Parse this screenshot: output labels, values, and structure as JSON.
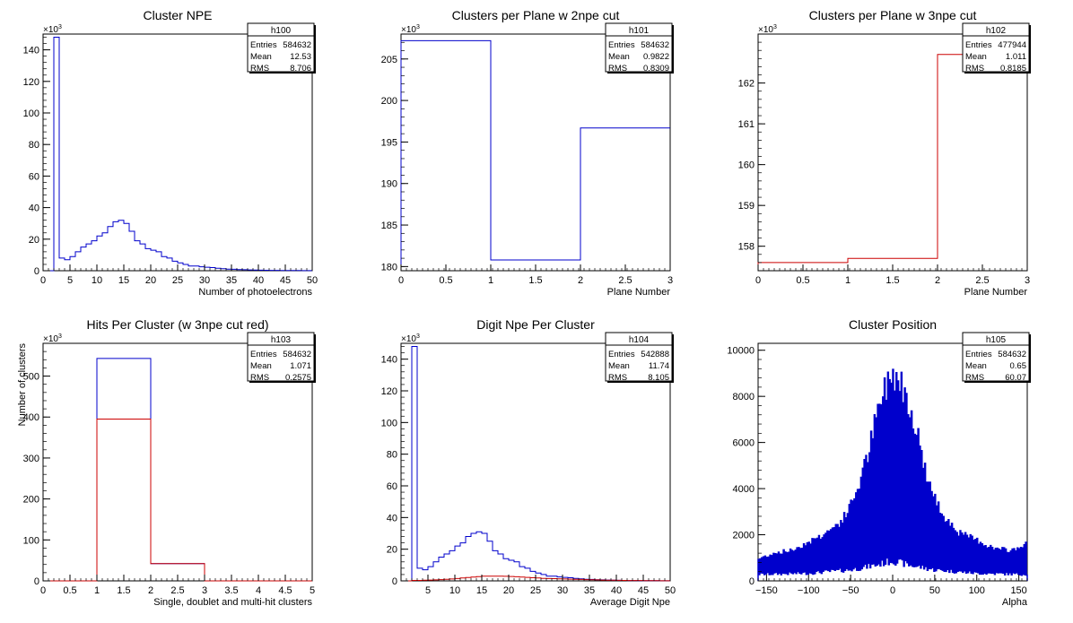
{
  "chart_data": [
    {
      "id": "h100",
      "type": "histogram",
      "title": "Cluster NPE",
      "xlabel": "Number of photoelectrons",
      "ylabel": "",
      "xlim": [
        0,
        50
      ],
      "ylim": [
        0,
        150
      ],
      "y_exponent_label": "×10³",
      "xticks": [
        0,
        5,
        10,
        15,
        20,
        25,
        30,
        35,
        40,
        45,
        50
      ],
      "yticks": [
        0,
        20,
        40,
        60,
        80,
        100,
        120,
        140
      ],
      "stats": {
        "name": "h100",
        "rows": [
          [
            "Entries",
            "584632"
          ],
          [
            "Mean",
            "12.53"
          ],
          [
            "RMS",
            "8.706"
          ]
        ]
      },
      "series": [
        {
          "color": "#0000cc",
          "edges": [
            0,
            1,
            2,
            3,
            4,
            5,
            6,
            7,
            8,
            9,
            10,
            11,
            12,
            13,
            14,
            15,
            16,
            17,
            18,
            19,
            20,
            21,
            22,
            23,
            24,
            25,
            26,
            27,
            28,
            29,
            30,
            31,
            32,
            33,
            34,
            35,
            36,
            37,
            38,
            39,
            40,
            41,
            42,
            43,
            44,
            45,
            46,
            47,
            48,
            49,
            50
          ],
          "values": [
            0,
            0,
            148,
            8,
            7,
            9,
            12,
            15,
            17,
            19,
            22,
            24,
            28,
            31,
            32,
            30,
            25,
            19,
            17,
            14,
            13,
            12,
            9,
            8,
            6,
            5,
            4,
            3,
            3,
            2.5,
            2.2,
            2,
            1.6,
            1.3,
            1,
            0.9,
            0.7,
            0.6,
            0.5,
            0.4,
            0.35,
            0.3,
            0.25,
            0.2,
            0.18,
            0.15,
            0.12,
            0.1,
            0.08,
            0.06
          ]
        }
      ]
    },
    {
      "id": "h101",
      "type": "histogram",
      "title": "Clusters per Plane w 2npe cut",
      "xlabel": "Plane Number",
      "ylabel": "",
      "xlim": [
        0,
        3
      ],
      "ylim": [
        179.5,
        208
      ],
      "y_exponent_label": "×10³",
      "xticks": [
        0,
        0.5,
        1,
        1.5,
        2,
        2.5,
        3
      ],
      "yticks": [
        180,
        185,
        190,
        195,
        200,
        205
      ],
      "stats": {
        "name": "h101",
        "rows": [
          [
            "Entries",
            "584632"
          ],
          [
            "Mean",
            "0.9822"
          ],
          [
            "RMS",
            "0.8309"
          ]
        ]
      },
      "series": [
        {
          "color": "#0000cc",
          "edges": [
            0,
            1,
            2,
            3
          ],
          "values": [
            207.2,
            180.8,
            196.7
          ]
        }
      ]
    },
    {
      "id": "h102",
      "type": "histogram",
      "title": "Clusters per Plane w 3npe cut",
      "xlabel": "Plane Number",
      "ylabel": "",
      "xlim": [
        0,
        3
      ],
      "ylim": [
        157.4,
        163.2
      ],
      "y_exponent_label": "×10³",
      "xticks": [
        0,
        0.5,
        1,
        1.5,
        2,
        2.5,
        3
      ],
      "yticks": [
        158,
        159,
        160,
        161,
        162
      ],
      "stats": {
        "name": "h102",
        "rows": [
          [
            "Entries",
            "477944"
          ],
          [
            "Mean",
            "1.011"
          ],
          [
            "RMS",
            "0.8185"
          ]
        ]
      },
      "series": [
        {
          "color": "#cc0000",
          "edges": [
            0,
            1,
            2,
            3
          ],
          "values": [
            157.6,
            157.7,
            162.7
          ]
        }
      ]
    },
    {
      "id": "h103",
      "type": "histogram",
      "title": "Hits Per Cluster (w 3npe cut red)",
      "xlabel": "Single, doublet and multi-hit clusters",
      "ylabel": "Number of clusters",
      "xlim": [
        0,
        5
      ],
      "ylim": [
        0,
        580
      ],
      "y_exponent_label": "×10³",
      "xticks": [
        0,
        0.5,
        1,
        1.5,
        2,
        2.5,
        3,
        3.5,
        4,
        4.5,
        5
      ],
      "yticks": [
        0,
        100,
        200,
        300,
        400,
        500
      ],
      "stats": {
        "name": "h103",
        "rows": [
          [
            "Entries",
            "584632"
          ],
          [
            "Mean",
            "1.071"
          ],
          [
            "RMS",
            "0.2575"
          ]
        ]
      },
      "series": [
        {
          "color": "#0000cc",
          "edges": [
            0,
            1,
            2,
            3,
            4,
            5
          ],
          "values": [
            0,
            543,
            42,
            0,
            0
          ]
        },
        {
          "color": "#cc0000",
          "edges": [
            0,
            1,
            2,
            3,
            4,
            5
          ],
          "values": [
            0,
            395,
            42,
            0,
            0
          ]
        }
      ]
    },
    {
      "id": "h104",
      "type": "histogram",
      "title": "Digit Npe Per Cluster",
      "xlabel": "Average Digit Npe",
      "ylabel": "",
      "xlim": [
        0,
        50
      ],
      "ylim": [
        0,
        150
      ],
      "y_exponent_label": "×10³",
      "xticks": [
        5,
        10,
        15,
        20,
        25,
        30,
        35,
        40,
        45,
        50
      ],
      "yticks": [
        0,
        20,
        40,
        60,
        80,
        100,
        120,
        140
      ],
      "stats": {
        "name": "h104",
        "rows": [
          [
            "Entries",
            "542888"
          ],
          [
            "Mean",
            "11.74"
          ],
          [
            "RMS",
            "8.105"
          ]
        ]
      },
      "series": [
        {
          "color": "#0000cc",
          "edges": [
            0,
            1,
            2,
            3,
            4,
            5,
            6,
            7,
            8,
            9,
            10,
            11,
            12,
            13,
            14,
            15,
            16,
            17,
            18,
            19,
            20,
            21,
            22,
            23,
            24,
            25,
            26,
            27,
            28,
            29,
            30,
            31,
            32,
            33,
            34,
            35,
            36,
            37,
            38,
            39,
            40,
            41,
            42,
            43,
            44,
            45,
            46,
            47,
            48,
            49,
            50
          ],
          "values": [
            0,
            0,
            148,
            8,
            7,
            9,
            12,
            15,
            17,
            19,
            22,
            24,
            28,
            30,
            31,
            30,
            25,
            19,
            17,
            14,
            13,
            12,
            9,
            8,
            6,
            5,
            4,
            3,
            3,
            2.5,
            2.2,
            2,
            1.6,
            1.3,
            1,
            0.9,
            0.7,
            0.6,
            0.5,
            0.4,
            0.35,
            0.3,
            0.25,
            0.2,
            0.18,
            0.15,
            0.12,
            0.1,
            0.08,
            0.06
          ]
        },
        {
          "color": "#cc0000",
          "edges": [
            0,
            1,
            2,
            3,
            4,
            5,
            6,
            7,
            8,
            9,
            10,
            11,
            12,
            13,
            14,
            15,
            16,
            17,
            18,
            19,
            20,
            21,
            22,
            23,
            24,
            25,
            26,
            27,
            28,
            29,
            30,
            31,
            32,
            33,
            34,
            35,
            36,
            37,
            38,
            39,
            40,
            41,
            42,
            43,
            44,
            45,
            46,
            47,
            48,
            49,
            50
          ],
          "values": [
            0,
            0,
            0.3,
            0.3,
            0.4,
            0.5,
            0.6,
            0.8,
            1,
            1.2,
            1.5,
            1.8,
            2.1,
            2.4,
            2.7,
            3,
            3,
            3,
            3,
            2.9,
            2.8,
            2.6,
            2.4,
            2.2,
            2,
            1.8,
            1.6,
            1.5,
            1.4,
            1.3,
            1.2,
            1.1,
            1,
            0.9,
            0.8,
            0.7,
            0.6,
            0.5,
            0.45,
            0.4,
            0.35,
            0.3,
            0.25,
            0.2,
            0.2,
            0.15,
            0.1,
            0.1,
            0.08,
            0.05
          ]
        }
      ]
    },
    {
      "id": "h105",
      "type": "histogram",
      "title": "Cluster Position",
      "xlabel": "Alpha",
      "ylabel": "",
      "xlim": [
        -160,
        160
      ],
      "ylim": [
        0,
        10300
      ],
      "y_exponent_label": "",
      "xticks": [
        -150,
        -100,
        -50,
        0,
        50,
        100,
        150
      ],
      "yticks": [
        0,
        2000,
        4000,
        6000,
        8000,
        10000
      ],
      "stats": {
        "name": "h105",
        "rows": [
          [
            "Entries",
            "584632"
          ],
          [
            "Mean",
            "0.65"
          ],
          [
            "RMS",
            "60.07"
          ]
        ]
      },
      "series": [
        {
          "color": "#0000cc",
          "style": "spiky",
          "xlim": [
            -160,
            160
          ],
          "envelope": [
            [
              -160,
              1000
            ],
            [
              -140,
              1300
            ],
            [
              -120,
              1400
            ],
            [
              -100,
              1800
            ],
            [
              -80,
              2200
            ],
            [
              -60,
              2800
            ],
            [
              -50,
              3500
            ],
            [
              -40,
              4500
            ],
            [
              -30,
              5800
            ],
            [
              -20,
              7500
            ],
            [
              -10,
              8900
            ],
            [
              0,
              9800
            ],
            [
              10,
              9300
            ],
            [
              20,
              8300
            ],
            [
              30,
              6800
            ],
            [
              40,
              5000
            ],
            [
              50,
              3800
            ],
            [
              60,
              3100
            ],
            [
              80,
              2200
            ],
            [
              100,
              1900
            ],
            [
              120,
              1500
            ],
            [
              140,
              1400
            ],
            [
              160,
              1700
            ]
          ],
          "floor": [
            [
              -160,
              300
            ],
            [
              -100,
              350
            ],
            [
              -50,
              500
            ],
            [
              -20,
              700
            ],
            [
              0,
              900
            ],
            [
              20,
              700
            ],
            [
              50,
              500
            ],
            [
              100,
              350
            ],
            [
              160,
              300
            ]
          ]
        }
      ]
    }
  ]
}
